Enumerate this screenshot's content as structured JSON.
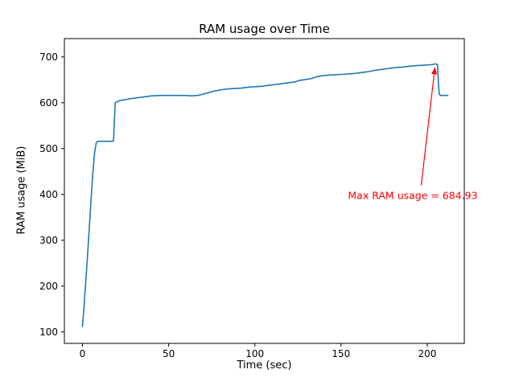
{
  "figure": {
    "background": "#ffffff"
  },
  "chart_data": {
    "type": "line",
    "title": "RAM usage over Time",
    "xlabel": "Time (sec)",
    "ylabel": "RAM usage (MiB)",
    "xlim": [
      -10.5,
      221.5
    ],
    "ylim": [
      75,
      740
    ],
    "x_ticks": [
      0,
      50,
      100,
      150,
      200
    ],
    "y_ticks": [
      100,
      200,
      300,
      400,
      500,
      600,
      700
    ],
    "line_color": "#1f77b4",
    "grid": false,
    "max_value": 684.93,
    "points": [
      [
        0,
        112
      ],
      [
        1,
        160
      ],
      [
        2,
        215
      ],
      [
        3,
        270
      ],
      [
        4,
        330
      ],
      [
        5,
        390
      ],
      [
        6,
        445
      ],
      [
        7,
        490
      ],
      [
        8,
        513
      ],
      [
        9,
        516
      ],
      [
        17,
        516
      ],
      [
        18,
        517
      ],
      [
        19,
        600
      ],
      [
        20,
        602
      ],
      [
        22,
        605
      ],
      [
        25,
        607
      ],
      [
        28,
        609
      ],
      [
        32,
        611
      ],
      [
        36,
        613
      ],
      [
        40,
        615
      ],
      [
        45,
        616
      ],
      [
        50,
        616
      ],
      [
        55,
        616
      ],
      [
        60,
        616
      ],
      [
        63,
        615
      ],
      [
        67,
        616
      ],
      [
        70,
        619
      ],
      [
        73,
        622
      ],
      [
        76,
        625
      ],
      [
        80,
        628
      ],
      [
        84,
        630
      ],
      [
        88,
        631
      ],
      [
        92,
        632
      ],
      [
        96,
        634
      ],
      [
        100,
        635
      ],
      [
        104,
        636
      ],
      [
        108,
        638
      ],
      [
        112,
        640
      ],
      [
        116,
        642
      ],
      [
        120,
        644
      ],
      [
        123,
        645
      ],
      [
        126,
        649
      ],
      [
        130,
        651
      ],
      [
        133,
        653
      ],
      [
        136,
        657
      ],
      [
        139,
        659
      ],
      [
        142,
        660
      ],
      [
        146,
        661
      ],
      [
        150,
        662
      ],
      [
        154,
        663
      ],
      [
        158,
        664
      ],
      [
        162,
        666
      ],
      [
        166,
        668
      ],
      [
        170,
        671
      ],
      [
        174,
        673
      ],
      [
        178,
        675
      ],
      [
        182,
        677
      ],
      [
        186,
        678
      ],
      [
        190,
        680
      ],
      [
        194,
        681
      ],
      [
        198,
        682
      ],
      [
        202,
        683
      ],
      [
        205,
        684.93
      ],
      [
        206,
        683
      ],
      [
        206.5,
        640
      ],
      [
        207,
        618
      ],
      [
        208,
        616
      ],
      [
        212,
        616
      ]
    ],
    "annotation": {
      "text": "Max RAM usage = 684.93",
      "color": "#ff0000",
      "text_x": 154,
      "text_y": 390,
      "arrow_from_x": 196.5,
      "arrow_from_y": 420,
      "arrow_to_x": 204.5,
      "arrow_to_y": 678
    }
  }
}
